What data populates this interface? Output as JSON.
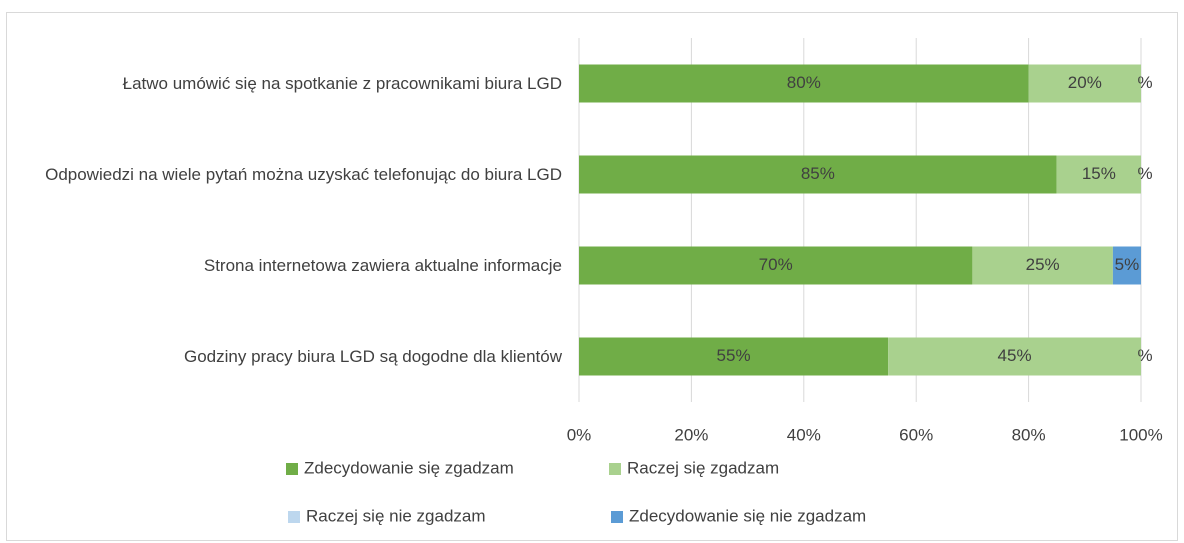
{
  "chart_data": {
    "type": "stacked_bar_horizontal",
    "categories": [
      "Łatwo umówić się na spotkanie z pracownikami biura LGD",
      "Odpowiedzi na wiele pytań można uzyskać telefonując do biura LGD",
      "Strona internetowa zawiera aktualne informacje",
      "Godziny pracy biura LGD są dogodne dla klientów"
    ],
    "series": [
      {
        "name": "Zdecydowanie się zgadzam",
        "color": "#70ad47",
        "values": [
          80,
          85,
          70,
          55
        ],
        "value_labels": [
          "80%",
          "85%",
          "70%",
          "55%"
        ]
      },
      {
        "name": "Raczej się zgadzam",
        "color": "#a9d18e",
        "values": [
          20,
          15,
          25,
          45
        ],
        "value_labels": [
          "20%",
          "15%",
          "25%",
          "45%"
        ]
      },
      {
        "name": "Raczej się nie zgadzam",
        "color": "#bdd7ee",
        "values": [
          0,
          0,
          0,
          0
        ]
      },
      {
        "name": "Zdecydowanie się nie zgadzam",
        "color": "#5b9bd5",
        "values": [
          0,
          0,
          5,
          0
        ],
        "value_labels": [
          "%",
          "%",
          "5%",
          "%"
        ]
      }
    ],
    "xlim": [
      0,
      100
    ],
    "xticks": [
      {
        "value": 0,
        "label": "0%"
      },
      {
        "value": 20,
        "label": "20%"
      },
      {
        "value": 40,
        "label": "40%"
      },
      {
        "value": 60,
        "label": "60%"
      },
      {
        "value": 80,
        "label": "80%"
      },
      {
        "value": 100,
        "label": "100%"
      }
    ],
    "grid": true,
    "legend": "bottom"
  }
}
